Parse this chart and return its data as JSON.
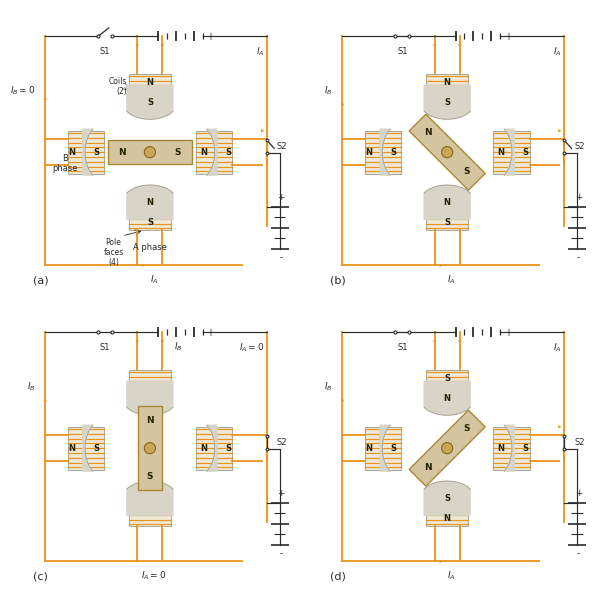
{
  "bg_color": "#ffffff",
  "orange": "#E8941A",
  "beige": "#D4C5A0",
  "light_beige": "#EDE8D8",
  "lgray": "#D8D4C8",
  "black": "#1A1A1A",
  "circuit_black": "#2A2A2A",
  "panel_labels": [
    "(a)",
    "(b)",
    "(c)",
    "(d)"
  ],
  "rotor_angles": [
    90,
    45,
    0,
    -45
  ],
  "rotor_labels_a": [
    [
      "N",
      "S"
    ],
    [
      "N",
      "S"
    ],
    [
      "N",
      "S"
    ],
    [
      "S",
      "N"
    ]
  ],
  "top_coil_labels_a": [
    [
      "N",
      "S"
    ],
    [
      "N",
      "S"
    ],
    [
      null,
      null
    ],
    [
      "S",
      "N"
    ]
  ],
  "bot_coil_labels_a": [
    [
      "N",
      "S"
    ],
    [
      "N",
      "S"
    ],
    [
      null,
      null
    ],
    [
      "S",
      "N"
    ]
  ],
  "left_coil_labels": [
    [
      "N",
      "S"
    ],
    [
      "N",
      "S"
    ],
    [
      "N",
      "S"
    ],
    [
      "N",
      "S"
    ]
  ],
  "right_coil_labels": [
    [
      "N",
      "S"
    ],
    [
      "N",
      "S"
    ],
    [
      "N",
      "S"
    ],
    [
      "N",
      "S"
    ]
  ],
  "IB_labels": [
    "I_B = 0",
    "I_B",
    "I_B",
    "I_B"
  ],
  "IA_top_labels": [
    "I_A",
    "I_A",
    "I_A = 0",
    "I_A"
  ],
  "IA_bot_labels": [
    "I_A",
    "I_A",
    "I_A = 0",
    "I_A"
  ],
  "IB_top_labels": [
    null,
    null,
    "I_B",
    null
  ],
  "s1_open": [
    true,
    false,
    false,
    false
  ],
  "s2_open": [
    true,
    true,
    false,
    false
  ]
}
